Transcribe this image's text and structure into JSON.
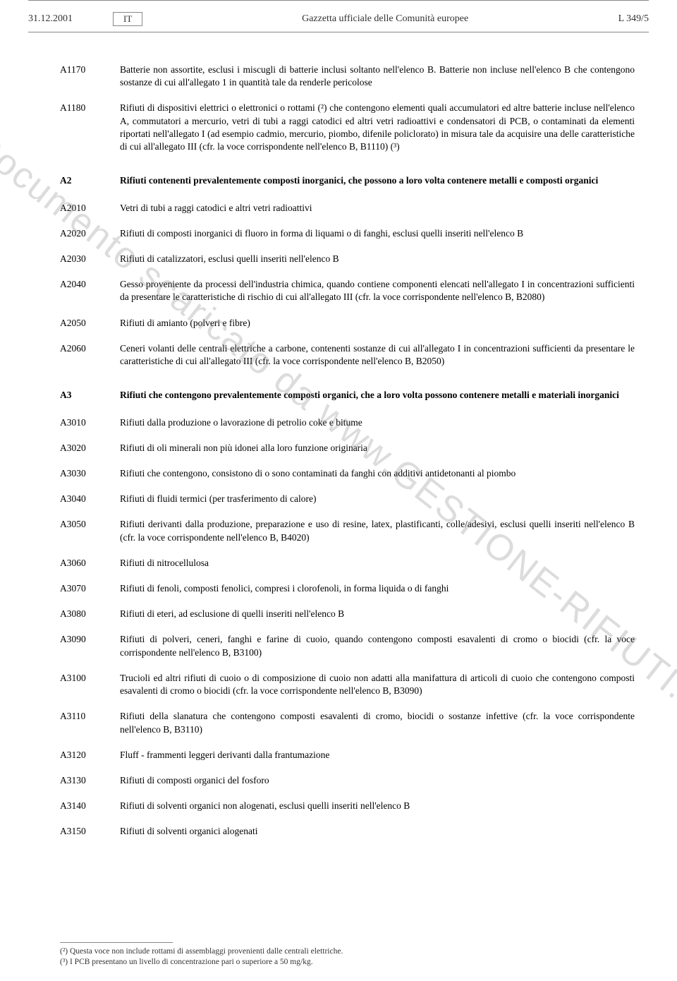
{
  "header": {
    "date": "31.12.2001",
    "lang": "IT",
    "title": "Gazzetta ufficiale delle Comunità europee",
    "page": "L 349/5"
  },
  "watermark": "Documento scaricato da www.GESTIONE-RIFIUTI.it",
  "rows": [
    {
      "code": "A1170",
      "desc": "Batterie non assortite, esclusi i miscugli di batterie inclusi soltanto nell'elenco B. Batterie non incluse nell'elenco B che contengono sostanze di cui all'allegato 1 in quantità tale da renderle pericolose"
    },
    {
      "code": "A1180",
      "desc": "Rifiuti di dispositivi elettrici o elettronici o rottami (²) che contengono elementi quali accumulatori ed altre batterie incluse nell'elenco A, commutatori a mercurio, vetri di tubi a raggi catodici ed altri vetri radioattivi e condensatori di PCB, o contaminati da elementi riportati nell'allegato I (ad esempio cadmio, mercurio, piombo, difenile policlorato) in misura tale da acquisire una delle caratteristiche di cui all'allegato III (cfr. la voce corrispondente nell'elenco B, B1110) (³)"
    },
    {
      "code": "A2",
      "desc": "Rifiuti contenenti prevalentemente composti inorganici, che possono a loro volta contenere metalli e composti organici",
      "section": true
    },
    {
      "code": "A2010",
      "desc": "Vetri di tubi a raggi catodici e altri vetri radioattivi"
    },
    {
      "code": "A2020",
      "desc": "Rifiuti di composti inorganici di fluoro in forma di liquami o di fanghi, esclusi quelli inseriti nell'elenco B"
    },
    {
      "code": "A2030",
      "desc": "Rifiuti di catalizzatori, esclusi quelli inseriti nell'elenco B"
    },
    {
      "code": "A2040",
      "desc": "Gesso proveniente da processi dell'industria chimica, quando contiene componenti elencati nell'allegato I in concentrazioni sufficienti da presentare le caratteristiche di rischio di cui all'allegato III (cfr. la voce corrispondente nell'elenco B, B2080)"
    },
    {
      "code": "A2050",
      "desc": "Rifiuti di amianto (polveri e fibre)"
    },
    {
      "code": "A2060",
      "desc": "Ceneri volanti delle centrali elettriche a carbone, contenenti sostanze di cui all'allegato I in concentrazioni sufficienti da presentare le caratteristiche di cui all'allegato III (cfr. la voce corrispondente nell'elenco B, B2050)"
    },
    {
      "code": "A3",
      "desc": "Rifiuti che contengono prevalentemente composti organici, che a loro volta possono contenere metalli e materiali inorganici",
      "section": true
    },
    {
      "code": "A3010",
      "desc": "Rifiuti dalla produzione o lavorazione di petrolio coke e bitume"
    },
    {
      "code": "A3020",
      "desc": "Rifiuti di oli minerali non più idonei alla loro funzione originaria"
    },
    {
      "code": "A3030",
      "desc": "Rifiuti che contengono, consistono di o sono contaminati da fanghi con additivi antidetonanti al piombo"
    },
    {
      "code": "A3040",
      "desc": "Rifiuti di fluidi termici (per trasferimento di calore)"
    },
    {
      "code": "A3050",
      "desc": "Rifiuti derivanti dalla produzione, preparazione e uso di resine, latex, plastificanti, colle/adesivi, esclusi quelli inseriti nell'elenco B (cfr. la voce corrispondente nell'elenco B, B4020)"
    },
    {
      "code": "A3060",
      "desc": "Rifiuti di nitrocellulosa"
    },
    {
      "code": "A3070",
      "desc": "Rifiuti di fenoli, composti fenolici, compresi i clorofenoli, in forma liquida o di fanghi"
    },
    {
      "code": "A3080",
      "desc": "Rifiuti di eteri, ad esclusione di quelli inseriti nell'elenco B"
    },
    {
      "code": "A3090",
      "desc": "Rifiuti di polveri, ceneri, fanghi e farine di cuoio, quando contengono composti esavalenti di cromo o biocidi (cfr. la voce corrispondente nell'elenco B, B3100)"
    },
    {
      "code": "A3100",
      "desc": "Trucioli ed altri rifiuti di cuoio o di composizione di cuoio non adatti alla manifattura di articoli di cuoio che contengono composti esavalenti di cromo o biocidi (cfr. la voce corrispondente nell'elenco B, B3090)"
    },
    {
      "code": "A3110",
      "desc": "Rifiuti della slanatura che contengono composti esavalenti di cromo, biocidi o sostanze infettive (cfr. la voce corrispondente nell'elenco B, B3110)"
    },
    {
      "code": "A3120",
      "desc": "Fluff - frammenti leggeri derivanti dalla frantumazione"
    },
    {
      "code": "A3130",
      "desc": "Rifiuti di composti organici del fosforo"
    },
    {
      "code": "A3140",
      "desc": "Rifiuti di solventi organici non alogenati, esclusi quelli inseriti nell'elenco B"
    },
    {
      "code": "A3150",
      "desc": "Rifiuti di solventi organici alogenati"
    }
  ],
  "footnotes": [
    "(²) Questa voce non include rottami di assemblaggi provenienti dalle centrali elettriche.",
    "(³) I PCB presentano un livello di concentrazione pari o superiore a 50 mg/kg."
  ]
}
